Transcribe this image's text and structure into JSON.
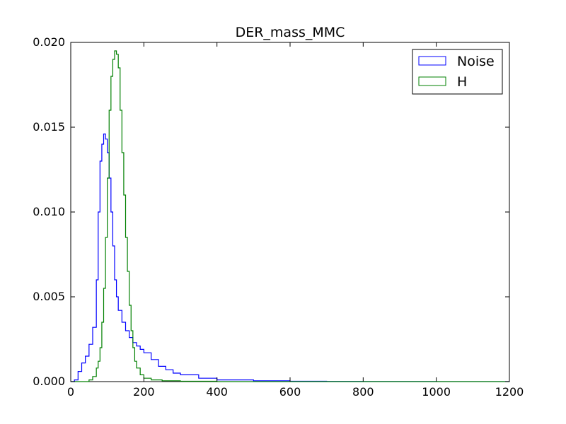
{
  "chart_data": {
    "type": "line",
    "subtype": "step-histogram",
    "title": "DER_mass_MMC",
    "xlabel": "",
    "ylabel": "",
    "xlim": [
      0,
      1200
    ],
    "ylim": [
      0,
      0.02
    ],
    "xticks": [
      "0",
      "200",
      "400",
      "600",
      "800",
      "1000",
      "1200"
    ],
    "yticks": [
      "0.000",
      "0.005",
      "0.010",
      "0.015",
      "0.020"
    ],
    "grid": false,
    "legend_position": "top-right",
    "series": [
      {
        "name": "Noise",
        "color": "#0000ff",
        "x": [
          0,
          10,
          20,
          30,
          40,
          50,
          60,
          70,
          75,
          80,
          85,
          90,
          95,
          100,
          105,
          110,
          115,
          120,
          125,
          130,
          140,
          150,
          160,
          170,
          180,
          190,
          200,
          220,
          240,
          260,
          280,
          300,
          350,
          400,
          500,
          600,
          700,
          800,
          1000,
          1200
        ],
        "y": [
          0,
          0.0001,
          0.0006,
          0.0011,
          0.0015,
          0.0022,
          0.0032,
          0.006,
          0.01,
          0.013,
          0.014,
          0.0146,
          0.0143,
          0.0135,
          0.012,
          0.01,
          0.008,
          0.006,
          0.005,
          0.0042,
          0.0035,
          0.003,
          0.0026,
          0.0023,
          0.0021,
          0.0019,
          0.0017,
          0.0013,
          0.0009,
          0.0007,
          0.0005,
          0.0004,
          0.0002,
          0.0001,
          5e-05,
          2e-05,
          1e-05,
          5e-06,
          2e-06,
          0
        ]
      },
      {
        "name": "H",
        "color": "#008000",
        "x": [
          0,
          40,
          50,
          60,
          70,
          75,
          80,
          85,
          90,
          95,
          100,
          105,
          110,
          115,
          120,
          125,
          130,
          135,
          140,
          145,
          150,
          155,
          160,
          165,
          170,
          175,
          180,
          190,
          200,
          220,
          250,
          300,
          400,
          1200
        ],
        "y": [
          0,
          0,
          0.0001,
          0.0003,
          0.0008,
          0.0012,
          0.002,
          0.0035,
          0.0055,
          0.0085,
          0.012,
          0.016,
          0.018,
          0.019,
          0.0195,
          0.0193,
          0.0185,
          0.016,
          0.0135,
          0.011,
          0.0085,
          0.0065,
          0.0045,
          0.003,
          0.002,
          0.0012,
          0.0008,
          0.0004,
          0.0002,
          0.0001,
          5e-05,
          2e-05,
          0,
          0
        ]
      }
    ]
  }
}
